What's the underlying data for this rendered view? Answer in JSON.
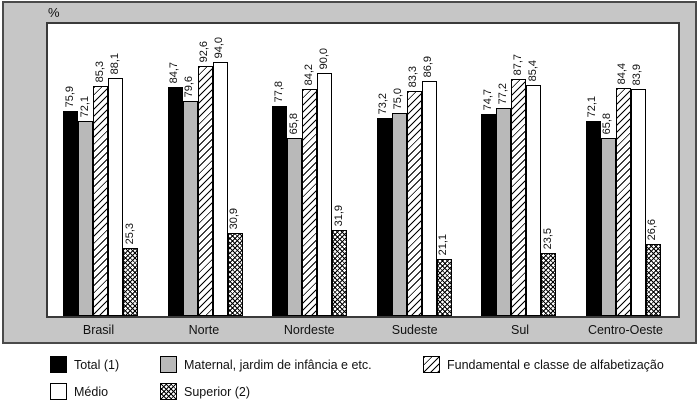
{
  "panel": {
    "unit_label": "%"
  },
  "colors": {
    "panel_background": "#c6c6c6",
    "panel_border": "#4a4a4a",
    "plot_background": "#ffffff",
    "plot_border": "#3a3a3a",
    "bar_black": "#000000",
    "bar_gray": "#b9b9b9",
    "bar_white": "#ffffff",
    "text": "#111111"
  },
  "chart_data": {
    "type": "bar",
    "title": "",
    "ylabel": "%",
    "xlabel": "",
    "grid": false,
    "value_labels": "rotated-90-above-bars",
    "decimal_separator": ",",
    "ylim": [
      0,
      108
    ],
    "legend_position": "bottom",
    "categories": [
      "Brasil",
      "Norte",
      "Nordeste",
      "Sudeste",
      "Sul",
      "Centro-Oeste"
    ],
    "series": [
      {
        "name": "Total (1)",
        "pattern": "solid-black",
        "values": [
          75.9,
          84.7,
          77.8,
          73.2,
          74.7,
          72.1
        ]
      },
      {
        "name": "Maternal, jardim de infância e etc.",
        "pattern": "solid-gray",
        "values": [
          72.1,
          79.6,
          65.8,
          75.0,
          77.2,
          65.8
        ]
      },
      {
        "name": "Fundamental e classe de alfabetização",
        "pattern": "diagonal-hatch",
        "values": [
          85.3,
          92.6,
          84.2,
          83.3,
          87.7,
          84.4
        ]
      },
      {
        "name": "Médio",
        "pattern": "solid-white",
        "values": [
          88.1,
          94.0,
          90.0,
          86.9,
          85.4,
          83.9
        ]
      },
      {
        "name": "Superior (2)",
        "pattern": "crosshatch",
        "values": [
          25.3,
          30.9,
          31.9,
          21.1,
          23.5,
          26.6
        ]
      }
    ]
  }
}
